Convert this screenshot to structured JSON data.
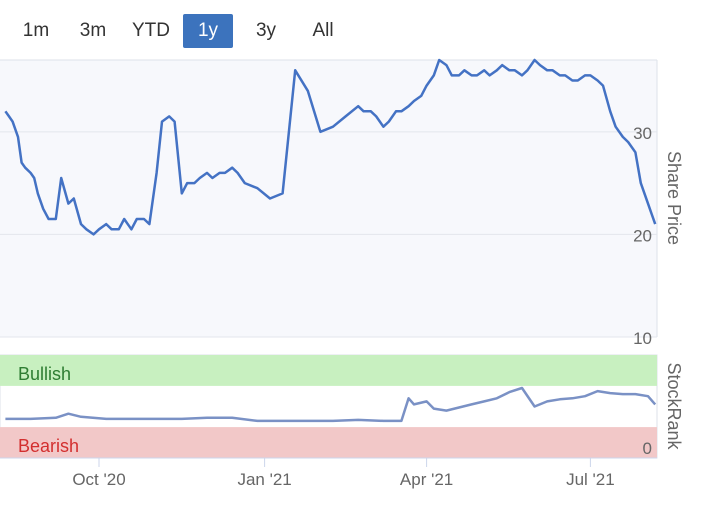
{
  "range_selector": {
    "buttons": [
      "1m",
      "3m",
      "YTD",
      "1y",
      "3y",
      "All"
    ],
    "active": "1y"
  },
  "chart_data": [
    {
      "type": "line",
      "title": "",
      "ylabel": "Share Price",
      "ylim": [
        10,
        37
      ],
      "yticks": [
        10,
        20,
        30
      ],
      "grid": true,
      "color": "#4472c4",
      "x": [
        "2020-08-10",
        "2020-08-12",
        "2020-08-14",
        "2020-08-17",
        "2020-08-19",
        "2020-08-21",
        "2020-08-24",
        "2020-08-26",
        "2020-08-28",
        "2020-08-31",
        "2020-09-03",
        "2020-09-07",
        "2020-09-10",
        "2020-09-14",
        "2020-09-17",
        "2020-09-21",
        "2020-09-24",
        "2020-09-28",
        "2020-10-01",
        "2020-10-05",
        "2020-10-08",
        "2020-10-12",
        "2020-10-15",
        "2020-10-19",
        "2020-10-22",
        "2020-10-26",
        "2020-10-29",
        "2020-11-02",
        "2020-11-05",
        "2020-11-09",
        "2020-11-12",
        "2020-11-16",
        "2020-11-19",
        "2020-11-23",
        "2020-11-26",
        "2020-11-30",
        "2020-12-03",
        "2020-12-07",
        "2020-12-10",
        "2020-12-14",
        "2020-12-17",
        "2020-12-21",
        "2020-12-28",
        "2021-01-04",
        "2021-01-11",
        "2021-01-18",
        "2021-01-25",
        "2021-02-01",
        "2021-02-08",
        "2021-02-15",
        "2021-02-22",
        "2021-02-25",
        "2021-03-01",
        "2021-03-04",
        "2021-03-08",
        "2021-03-11",
        "2021-03-15",
        "2021-03-18",
        "2021-03-22",
        "2021-03-25",
        "2021-03-29",
        "2021-04-01",
        "2021-04-05",
        "2021-04-08",
        "2021-04-12",
        "2021-04-15",
        "2021-04-19",
        "2021-04-22",
        "2021-04-26",
        "2021-04-29",
        "2021-05-03",
        "2021-05-06",
        "2021-05-10",
        "2021-05-13",
        "2021-05-17",
        "2021-05-20",
        "2021-05-24",
        "2021-05-27",
        "2021-05-31",
        "2021-06-03",
        "2021-06-07",
        "2021-06-10",
        "2021-06-14",
        "2021-06-17",
        "2021-06-21",
        "2021-06-24",
        "2021-06-28",
        "2021-07-01",
        "2021-07-05",
        "2021-07-08",
        "2021-07-12",
        "2021-07-15",
        "2021-07-19",
        "2021-07-22",
        "2021-07-26",
        "2021-07-29",
        "2021-08-02",
        "2021-08-04",
        "2021-08-06"
      ],
      "values": [
        32,
        31.5,
        31,
        29.5,
        27,
        26.5,
        26,
        25.5,
        24,
        22.5,
        21.5,
        21.5,
        25.5,
        23,
        23.5,
        21,
        20.5,
        20,
        20.5,
        21,
        20.5,
        20.5,
        21.5,
        20.5,
        21.5,
        21.5,
        21,
        26,
        31,
        31.5,
        31,
        24,
        25,
        25,
        25.5,
        26,
        25.5,
        26,
        26,
        26.5,
        26,
        25,
        24.5,
        23.5,
        24,
        36,
        34,
        30,
        30.5,
        31.5,
        32.5,
        32,
        32,
        31.5,
        30.5,
        31,
        32,
        32,
        32.5,
        33,
        33.5,
        34.5,
        35.5,
        37,
        36.5,
        35.5,
        35.5,
        36,
        35.5,
        35.5,
        36,
        35.5,
        36,
        36.5,
        36,
        36,
        35.5,
        36,
        37,
        36.5,
        36,
        36,
        35.5,
        35.5,
        35,
        35,
        35.5,
        35.5,
        35,
        34.5,
        32,
        30.5,
        29.5,
        29,
        28,
        25,
        23,
        22,
        21
      ]
    },
    {
      "type": "line",
      "title": "",
      "ylabel": "StockRank",
      "ylim": [
        0,
        100
      ],
      "yticks": [
        0
      ],
      "bands": [
        {
          "label": "Bullish",
          "from": 70,
          "to": 100,
          "color": "#c8f0c0",
          "text_color": "#2e7d32"
        },
        {
          "label": "Bearish",
          "from": 0,
          "to": 30,
          "color": "#f2c8c8",
          "text_color": "#d32f2f"
        }
      ],
      "color": "#7a91c5",
      "x": [
        "2020-08-10",
        "2020-08-24",
        "2020-09-07",
        "2020-09-14",
        "2020-09-21",
        "2020-10-05",
        "2020-10-19",
        "2020-11-02",
        "2020-11-16",
        "2020-11-30",
        "2020-12-14",
        "2020-12-28",
        "2021-01-11",
        "2021-01-25",
        "2021-02-08",
        "2021-02-22",
        "2021-03-08",
        "2021-03-18",
        "2021-03-22",
        "2021-03-25",
        "2021-04-01",
        "2021-04-05",
        "2021-04-12",
        "2021-04-19",
        "2021-04-26",
        "2021-05-03",
        "2021-05-10",
        "2021-05-17",
        "2021-05-24",
        "2021-05-31",
        "2021-06-07",
        "2021-06-14",
        "2021-06-21",
        "2021-06-28",
        "2021-07-05",
        "2021-07-12",
        "2021-07-19",
        "2021-07-26",
        "2021-08-02",
        "2021-08-06"
      ],
      "values": [
        38,
        38,
        39,
        43,
        40,
        38,
        38,
        38,
        38,
        39,
        39,
        36,
        36,
        36,
        36,
        37,
        36,
        36,
        58,
        52,
        55,
        48,
        46,
        49,
        52,
        55,
        58,
        64,
        68,
        50,
        55,
        57,
        58,
        60,
        65,
        63,
        62,
        62,
        60,
        52
      ]
    }
  ],
  "x_axis": {
    "ticks": [
      {
        "label": "Oct '20",
        "date": "2020-10-01"
      },
      {
        "label": "Jan '21",
        "date": "2021-01-01"
      },
      {
        "label": "Apr '21",
        "date": "2021-04-01"
      },
      {
        "label": "Jul '21",
        "date": "2021-07-01"
      }
    ],
    "start": "2020-08-07",
    "end": "2021-08-07"
  }
}
